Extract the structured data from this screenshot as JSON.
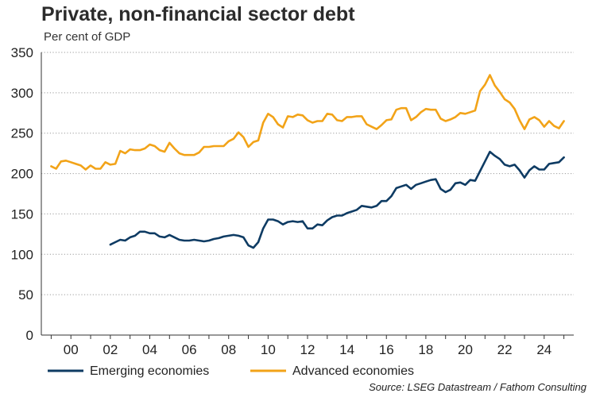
{
  "chart_data": {
    "type": "line",
    "title": "Private, non-financial sector debt",
    "subtitle": "Per cent of GDP",
    "source": "Source: LSEG Datastream / Fathom Consulting",
    "ylim": [
      0,
      350
    ],
    "yticks": [
      "0",
      "50",
      "100",
      "150",
      "200",
      "250",
      "300",
      "350"
    ],
    "xlim": [
      1998.5,
      2025.5
    ],
    "xticks": [
      {
        "value": 2000,
        "label": "00"
      },
      {
        "value": 2002,
        "label": "02"
      },
      {
        "value": 2004,
        "label": "04"
      },
      {
        "value": 2006,
        "label": "06"
      },
      {
        "value": 2008,
        "label": "08"
      },
      {
        "value": 2010,
        "label": "10"
      },
      {
        "value": 2012,
        "label": "12"
      },
      {
        "value": 2014,
        "label": "14"
      },
      {
        "value": 2016,
        "label": "16"
      },
      {
        "value": 2018,
        "label": "18"
      },
      {
        "value": 2020,
        "label": "20"
      },
      {
        "value": 2022,
        "label": "22"
      },
      {
        "value": 2024,
        "label": "24"
      }
    ],
    "grid": "horizontal-dotted",
    "legend_position": "bottom",
    "series": [
      {
        "name": "Emerging economies",
        "color": "#0e3b63",
        "points": [
          [
            2002.0,
            112
          ],
          [
            2002.25,
            115
          ],
          [
            2002.5,
            118
          ],
          [
            2002.75,
            117
          ],
          [
            2003.0,
            121
          ],
          [
            2003.25,
            123
          ],
          [
            2003.5,
            128
          ],
          [
            2003.75,
            128
          ],
          [
            2004.0,
            126
          ],
          [
            2004.25,
            126
          ],
          [
            2004.5,
            122
          ],
          [
            2004.75,
            121
          ],
          [
            2005.0,
            124
          ],
          [
            2005.25,
            121
          ],
          [
            2005.5,
            118
          ],
          [
            2005.75,
            117
          ],
          [
            2006.0,
            117
          ],
          [
            2006.25,
            118
          ],
          [
            2006.5,
            117
          ],
          [
            2006.75,
            116
          ],
          [
            2007.0,
            117
          ],
          [
            2007.25,
            119
          ],
          [
            2007.5,
            120
          ],
          [
            2007.75,
            122
          ],
          [
            2008.0,
            123
          ],
          [
            2008.25,
            124
          ],
          [
            2008.5,
            123
          ],
          [
            2008.75,
            121
          ],
          [
            2009.0,
            111
          ],
          [
            2009.25,
            108
          ],
          [
            2009.5,
            115
          ],
          [
            2009.75,
            132
          ],
          [
            2010.0,
            143
          ],
          [
            2010.25,
            143
          ],
          [
            2010.5,
            141
          ],
          [
            2010.75,
            137
          ],
          [
            2011.0,
            140
          ],
          [
            2011.25,
            141
          ],
          [
            2011.5,
            140
          ],
          [
            2011.75,
            141
          ],
          [
            2012.0,
            132
          ],
          [
            2012.25,
            132
          ],
          [
            2012.5,
            137
          ],
          [
            2012.75,
            136
          ],
          [
            2013.0,
            142
          ],
          [
            2013.25,
            146
          ],
          [
            2013.5,
            148
          ],
          [
            2013.75,
            148
          ],
          [
            2014.0,
            151
          ],
          [
            2014.25,
            153
          ],
          [
            2014.5,
            155
          ],
          [
            2014.75,
            160
          ],
          [
            2015.0,
            159
          ],
          [
            2015.25,
            158
          ],
          [
            2015.5,
            160
          ],
          [
            2015.75,
            166
          ],
          [
            2016.0,
            166
          ],
          [
            2016.25,
            172
          ],
          [
            2016.5,
            182
          ],
          [
            2016.75,
            184
          ],
          [
            2017.0,
            186
          ],
          [
            2017.25,
            181
          ],
          [
            2017.5,
            186
          ],
          [
            2017.75,
            188
          ],
          [
            2018.0,
            190
          ],
          [
            2018.25,
            192
          ],
          [
            2018.5,
            193
          ],
          [
            2018.75,
            181
          ],
          [
            2019.0,
            177
          ],
          [
            2019.25,
            180
          ],
          [
            2019.5,
            188
          ],
          [
            2019.75,
            189
          ],
          [
            2020.0,
            186
          ],
          [
            2020.25,
            192
          ],
          [
            2020.5,
            191
          ],
          [
            2020.75,
            203
          ],
          [
            2021.0,
            215
          ],
          [
            2021.25,
            227
          ],
          [
            2021.5,
            222
          ],
          [
            2021.75,
            218
          ],
          [
            2022.0,
            211
          ],
          [
            2022.25,
            209
          ],
          [
            2022.5,
            211
          ],
          [
            2022.75,
            204
          ],
          [
            2023.0,
            195
          ],
          [
            2023.25,
            204
          ],
          [
            2023.5,
            209
          ],
          [
            2023.75,
            205
          ],
          [
            2024.0,
            205
          ],
          [
            2024.25,
            212
          ],
          [
            2024.5,
            213
          ],
          [
            2024.75,
            214
          ],
          [
            2025.0,
            220
          ]
        ]
      },
      {
        "name": "Advanced economies",
        "color": "#f2a318",
        "points": [
          [
            1999.0,
            209
          ],
          [
            1999.25,
            206
          ],
          [
            1999.5,
            215
          ],
          [
            1999.75,
            216
          ],
          [
            2000.0,
            214
          ],
          [
            2000.25,
            212
          ],
          [
            2000.5,
            210
          ],
          [
            2000.75,
            205
          ],
          [
            2001.0,
            210
          ],
          [
            2001.25,
            206
          ],
          [
            2001.5,
            206
          ],
          [
            2001.75,
            214
          ],
          [
            2002.0,
            211
          ],
          [
            2002.25,
            212
          ],
          [
            2002.5,
            228
          ],
          [
            2002.75,
            225
          ],
          [
            2003.0,
            230
          ],
          [
            2003.25,
            229
          ],
          [
            2003.5,
            229
          ],
          [
            2003.75,
            231
          ],
          [
            2004.0,
            236
          ],
          [
            2004.25,
            234
          ],
          [
            2004.5,
            229
          ],
          [
            2004.75,
            227
          ],
          [
            2005.0,
            238
          ],
          [
            2005.25,
            231
          ],
          [
            2005.5,
            225
          ],
          [
            2005.75,
            223
          ],
          [
            2006.0,
            223
          ],
          [
            2006.25,
            223
          ],
          [
            2006.5,
            226
          ],
          [
            2006.75,
            233
          ],
          [
            2007.0,
            233
          ],
          [
            2007.25,
            234
          ],
          [
            2007.5,
            234
          ],
          [
            2007.75,
            234
          ],
          [
            2008.0,
            240
          ],
          [
            2008.25,
            243
          ],
          [
            2008.5,
            251
          ],
          [
            2008.75,
            245
          ],
          [
            2009.0,
            233
          ],
          [
            2009.25,
            239
          ],
          [
            2009.5,
            241
          ],
          [
            2009.75,
            263
          ],
          [
            2010.0,
            274
          ],
          [
            2010.25,
            270
          ],
          [
            2010.5,
            261
          ],
          [
            2010.75,
            257
          ],
          [
            2011.0,
            271
          ],
          [
            2011.25,
            270
          ],
          [
            2011.5,
            273
          ],
          [
            2011.75,
            272
          ],
          [
            2012.0,
            266
          ],
          [
            2012.25,
            263
          ],
          [
            2012.5,
            265
          ],
          [
            2012.75,
            265
          ],
          [
            2013.0,
            274
          ],
          [
            2013.25,
            273
          ],
          [
            2013.5,
            266
          ],
          [
            2013.75,
            265
          ],
          [
            2014.0,
            270
          ],
          [
            2014.25,
            270
          ],
          [
            2014.5,
            271
          ],
          [
            2014.75,
            271
          ],
          [
            2015.0,
            261
          ],
          [
            2015.25,
            258
          ],
          [
            2015.5,
            255
          ],
          [
            2015.75,
            260
          ],
          [
            2016.0,
            266
          ],
          [
            2016.25,
            267
          ],
          [
            2016.5,
            279
          ],
          [
            2016.75,
            281
          ],
          [
            2017.0,
            281
          ],
          [
            2017.25,
            266
          ],
          [
            2017.5,
            270
          ],
          [
            2017.75,
            276
          ],
          [
            2018.0,
            280
          ],
          [
            2018.25,
            279
          ],
          [
            2018.5,
            279
          ],
          [
            2018.75,
            268
          ],
          [
            2019.0,
            265
          ],
          [
            2019.25,
            267
          ],
          [
            2019.5,
            270
          ],
          [
            2019.75,
            275
          ],
          [
            2020.0,
            274
          ],
          [
            2020.25,
            276
          ],
          [
            2020.5,
            278
          ],
          [
            2020.75,
            302
          ],
          [
            2021.0,
            310
          ],
          [
            2021.25,
            322
          ],
          [
            2021.5,
            309
          ],
          [
            2021.75,
            301
          ],
          [
            2022.0,
            292
          ],
          [
            2022.25,
            288
          ],
          [
            2022.5,
            280
          ],
          [
            2022.75,
            266
          ],
          [
            2023.0,
            255
          ],
          [
            2023.25,
            267
          ],
          [
            2023.5,
            270
          ],
          [
            2023.75,
            266
          ],
          [
            2024.0,
            258
          ],
          [
            2024.25,
            265
          ],
          [
            2024.5,
            259
          ],
          [
            2024.75,
            256
          ],
          [
            2025.0,
            265
          ]
        ]
      }
    ]
  }
}
